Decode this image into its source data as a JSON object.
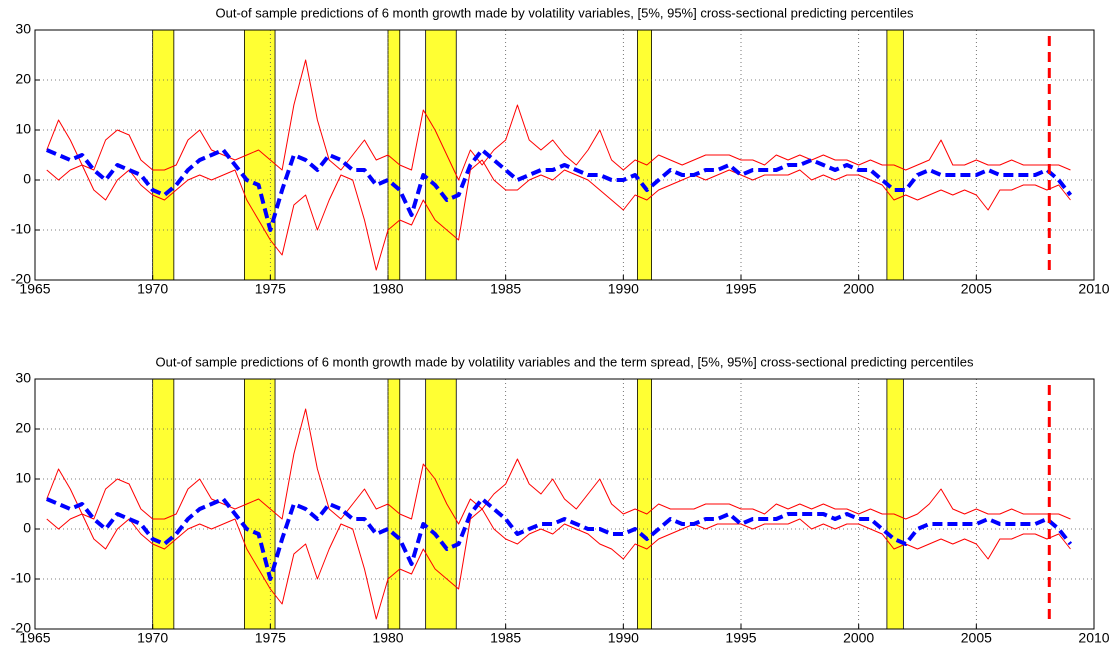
{
  "chart_data": [
    {
      "type": "line",
      "title": "Out-of sample predictions of 6 month growth made by volatility variables, [5%, 95%] cross-sectional predicting percentiles",
      "x": [
        1965.5,
        1966,
        1966.5,
        1967,
        1967.5,
        1968,
        1968.5,
        1969,
        1969.5,
        1970,
        1970.5,
        1971,
        1971.5,
        1972,
        1972.5,
        1973,
        1973.5,
        1974,
        1974.5,
        1975,
        1975.5,
        1976,
        1976.5,
        1977,
        1977.5,
        1978,
        1978.5,
        1979,
        1979.5,
        1980,
        1980.5,
        1981,
        1981.5,
        1982,
        1982.5,
        1983,
        1983.5,
        1984,
        1984.5,
        1985,
        1985.5,
        1986,
        1986.5,
        1987,
        1987.5,
        1988,
        1988.5,
        1989,
        1989.5,
        1990,
        1990.5,
        1991,
        1991.5,
        1992,
        1992.5,
        1993,
        1993.5,
        1994,
        1994.5,
        1995,
        1995.5,
        1996,
        1996.5,
        1997,
        1997.5,
        1998,
        1998.5,
        1999,
        1999.5,
        2000,
        2000.5,
        2001,
        2001.5,
        2002,
        2002.5,
        2003,
        2003.5,
        2004,
        2004.5,
        2005,
        2005.5,
        2006,
        2006.5,
        2007,
        2007.5,
        2008,
        2008.5,
        2009
      ],
      "series": [
        {
          "color": "#ff0000",
          "line_width": 1,
          "dashed": false,
          "values": [
            6,
            12,
            8,
            3,
            2,
            8,
            10,
            9,
            4,
            2,
            2,
            3,
            8,
            10,
            6,
            5,
            4,
            5,
            6,
            4,
            2,
            15,
            24,
            12,
            4,
            2,
            5,
            8,
            4,
            5,
            3,
            2,
            14,
            10,
            5,
            0,
            6,
            3,
            6,
            8,
            15,
            8,
            6,
            8,
            5,
            3,
            6,
            10,
            4,
            2,
            4,
            3,
            5,
            4,
            3,
            4,
            5,
            5,
            5,
            4,
            4,
            3,
            5,
            4,
            5,
            4,
            5,
            4,
            4,
            3,
            4,
            3,
            3,
            2,
            3,
            4,
            8,
            3,
            3,
            4,
            3,
            3,
            4,
            3,
            3,
            3,
            3,
            2
          ]
        },
        {
          "color": "#ff0000",
          "line_width": 1,
          "dashed": false,
          "values": [
            2,
            0,
            2,
            3,
            -2,
            -4,
            0,
            2,
            -1,
            -3,
            -4,
            -2,
            0,
            1,
            0,
            1,
            2,
            -4,
            -8,
            -12,
            -15,
            -5,
            -3,
            -10,
            -4,
            1,
            0,
            -8,
            -18,
            -10,
            -8,
            -9,
            -4,
            -8,
            -10,
            -12,
            2,
            4,
            0,
            -2,
            -2,
            0,
            1,
            0,
            2,
            1,
            0,
            -2,
            -4,
            -6,
            -3,
            -4,
            -2,
            -1,
            0,
            1,
            0,
            1,
            2,
            1,
            0,
            1,
            1,
            1,
            2,
            0,
            1,
            0,
            1,
            1,
            0,
            -1,
            -4,
            -3,
            -4,
            -3,
            -2,
            -3,
            -2,
            -3,
            -6,
            -2,
            -2,
            -1,
            -1,
            -2,
            -1,
            -4
          ]
        },
        {
          "color": "#0000ff",
          "line_width": 4,
          "dashed": true,
          "values": [
            6,
            5,
            4,
            5,
            2,
            0,
            3,
            2,
            1,
            -2,
            -3,
            -1,
            2,
            4,
            5,
            6,
            3,
            0,
            -1,
            -10,
            -2,
            5,
            4,
            2,
            5,
            4,
            2,
            2,
            -1,
            0,
            -2,
            -7,
            1,
            -1,
            -4,
            -3,
            3,
            6,
            4,
            2,
            0,
            1,
            2,
            2,
            3,
            2,
            1,
            1,
            0,
            0,
            1,
            -2,
            0,
            2,
            1,
            1,
            2,
            2,
            3,
            1,
            2,
            2,
            2,
            3,
            3,
            4,
            3,
            2,
            3,
            2,
            2,
            0,
            -2,
            -2,
            1,
            2,
            1,
            1,
            1,
            1,
            2,
            1,
            1,
            1,
            1,
            2,
            0,
            -3
          ]
        }
      ],
      "shaded_regions": [
        [
          1970,
          1970.9
        ],
        [
          1973.9,
          1975.2
        ],
        [
          1980,
          1980.5
        ],
        [
          1981.6,
          1982.9
        ],
        [
          1990.6,
          1991.2
        ],
        [
          2001.2,
          2001.9
        ]
      ],
      "shade_color": "#ffff33",
      "vline": {
        "x": 2008.1,
        "y": [
          -18,
          30
        ],
        "color": "#ff0000"
      },
      "xlim": [
        1965,
        2010
      ],
      "xticks": [
        1965,
        1970,
        1975,
        1980,
        1985,
        1990,
        1995,
        2000,
        2005,
        2010
      ],
      "ylim": [
        -20,
        30
      ],
      "yticks": [
        -20,
        -10,
        0,
        10,
        20,
        30
      ],
      "grid": true
    },
    {
      "type": "line",
      "title": "Out-of sample predictions of 6 month growth made by volatility variables and the term spread, [5%, 95%] cross-sectional predicting percentiles",
      "x": [
        1965.5,
        1966,
        1966.5,
        1967,
        1967.5,
        1968,
        1968.5,
        1969,
        1969.5,
        1970,
        1970.5,
        1971,
        1971.5,
        1972,
        1972.5,
        1973,
        1973.5,
        1974,
        1974.5,
        1975,
        1975.5,
        1976,
        1976.5,
        1977,
        1977.5,
        1978,
        1978.5,
        1979,
        1979.5,
        1980,
        1980.5,
        1981,
        1981.5,
        1982,
        1982.5,
        1983,
        1983.5,
        1984,
        1984.5,
        1985,
        1985.5,
        1986,
        1986.5,
        1987,
        1987.5,
        1988,
        1988.5,
        1989,
        1989.5,
        1990,
        1990.5,
        1991,
        1991.5,
        1992,
        1992.5,
        1993,
        1993.5,
        1994,
        1994.5,
        1995,
        1995.5,
        1996,
        1996.5,
        1997,
        1997.5,
        1998,
        1998.5,
        1999,
        1999.5,
        2000,
        2000.5,
        2001,
        2001.5,
        2002,
        2002.5,
        2003,
        2003.5,
        2004,
        2004.5,
        2005,
        2005.5,
        2006,
        2006.5,
        2007,
        2007.5,
        2008,
        2008.5,
        2009
      ],
      "series": [
        {
          "color": "#ff0000",
          "line_width": 1,
          "dashed": false,
          "values": [
            6,
            12,
            8,
            3,
            2,
            8,
            10,
            9,
            4,
            2,
            2,
            3,
            8,
            10,
            6,
            5,
            4,
            5,
            6,
            4,
            2,
            15,
            24,
            12,
            4,
            2,
            5,
            8,
            4,
            5,
            3,
            2,
            13,
            10,
            5,
            1,
            6,
            4,
            7,
            9,
            14,
            9,
            7,
            10,
            6,
            4,
            7,
            10,
            5,
            3,
            4,
            3,
            5,
            4,
            4,
            4,
            5,
            5,
            5,
            4,
            4,
            3,
            5,
            4,
            5,
            4,
            5,
            4,
            4,
            3,
            4,
            3,
            3,
            2,
            3,
            5,
            8,
            4,
            3,
            4,
            3,
            3,
            4,
            3,
            3,
            3,
            3,
            2
          ]
        },
        {
          "color": "#ff0000",
          "line_width": 1,
          "dashed": false,
          "values": [
            2,
            0,
            2,
            3,
            -2,
            -4,
            0,
            2,
            -1,
            -3,
            -4,
            -2,
            0,
            1,
            0,
            1,
            2,
            -4,
            -8,
            -12,
            -15,
            -5,
            -3,
            -10,
            -4,
            1,
            0,
            -8,
            -18,
            -10,
            -8,
            -9,
            -4,
            -8,
            -10,
            -12,
            2,
            4,
            0,
            -2,
            -3,
            -1,
            0,
            -1,
            1,
            0,
            -1,
            -3,
            -4,
            -6,
            -3,
            -4,
            -2,
            -1,
            0,
            1,
            0,
            1,
            1,
            1,
            0,
            1,
            1,
            1,
            2,
            0,
            1,
            0,
            1,
            1,
            0,
            -1,
            -4,
            -3,
            -4,
            -3,
            -2,
            -3,
            -2,
            -3,
            -6,
            -2,
            -2,
            -1,
            -1,
            -2,
            -1,
            -4
          ]
        },
        {
          "color": "#0000ff",
          "line_width": 4,
          "dashed": true,
          "values": [
            6,
            5,
            4,
            5,
            2,
            0,
            3,
            2,
            1,
            -2,
            -3,
            -1,
            2,
            4,
            5,
            6,
            3,
            0,
            -1,
            -10,
            -2,
            5,
            4,
            2,
            5,
            4,
            2,
            2,
            -1,
            0,
            -2,
            -7,
            1,
            -1,
            -4,
            -3,
            3,
            6,
            4,
            2,
            -1,
            0,
            1,
            1,
            2,
            1,
            0,
            0,
            -1,
            -1,
            0,
            -2,
            0,
            2,
            1,
            1,
            2,
            2,
            3,
            1,
            2,
            2,
            2,
            3,
            3,
            3,
            3,
            2,
            3,
            2,
            2,
            0,
            -2,
            -3,
            0,
            1,
            1,
            1,
            1,
            1,
            2,
            1,
            1,
            1,
            1,
            2,
            0,
            -3
          ]
        }
      ],
      "shaded_regions": [
        [
          1970,
          1970.9
        ],
        [
          1973.9,
          1975.2
        ],
        [
          1980,
          1980.5
        ],
        [
          1981.6,
          1982.9
        ],
        [
          1990.6,
          1991.2
        ],
        [
          2001.2,
          2001.9
        ]
      ],
      "shade_color": "#ffff33",
      "vline": {
        "x": 2008.1,
        "y": [
          -18,
          30
        ],
        "color": "#ff0000"
      },
      "xlim": [
        1965,
        2010
      ],
      "xticks": [
        1965,
        1970,
        1975,
        1980,
        1985,
        1990,
        1995,
        2000,
        2005,
        2010
      ],
      "ylim": [
        -20,
        30
      ],
      "yticks": [
        -20,
        -10,
        0,
        10,
        20,
        30
      ],
      "grid": true
    }
  ]
}
